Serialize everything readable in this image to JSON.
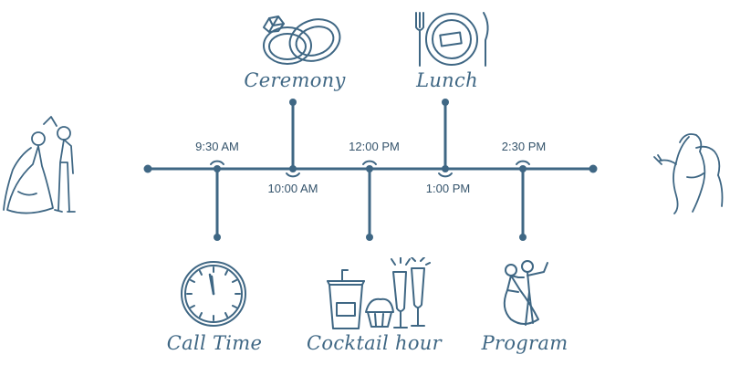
{
  "colors": {
    "ink": "#3f6784",
    "text": "#34536b",
    "background": "#ffffff"
  },
  "times": [
    "9:30 AM",
    "10:00 AM",
    "12:00 PM",
    "1:00 PM",
    "2:30 PM"
  ],
  "events": [
    {
      "label": "Ceremony",
      "icon": "wedding-rings-icon"
    },
    {
      "label": "Lunch",
      "icon": "place-setting-icon"
    },
    {
      "label": "Call Time",
      "icon": "clock-icon"
    },
    {
      "label": "Cocktail hour",
      "icon": "cocktails-icon"
    },
    {
      "label": "Program",
      "icon": "dancing-couple-icon"
    }
  ],
  "decorations": [
    "bride-groom-left-icon",
    "embracing-couple-right-icon"
  ]
}
